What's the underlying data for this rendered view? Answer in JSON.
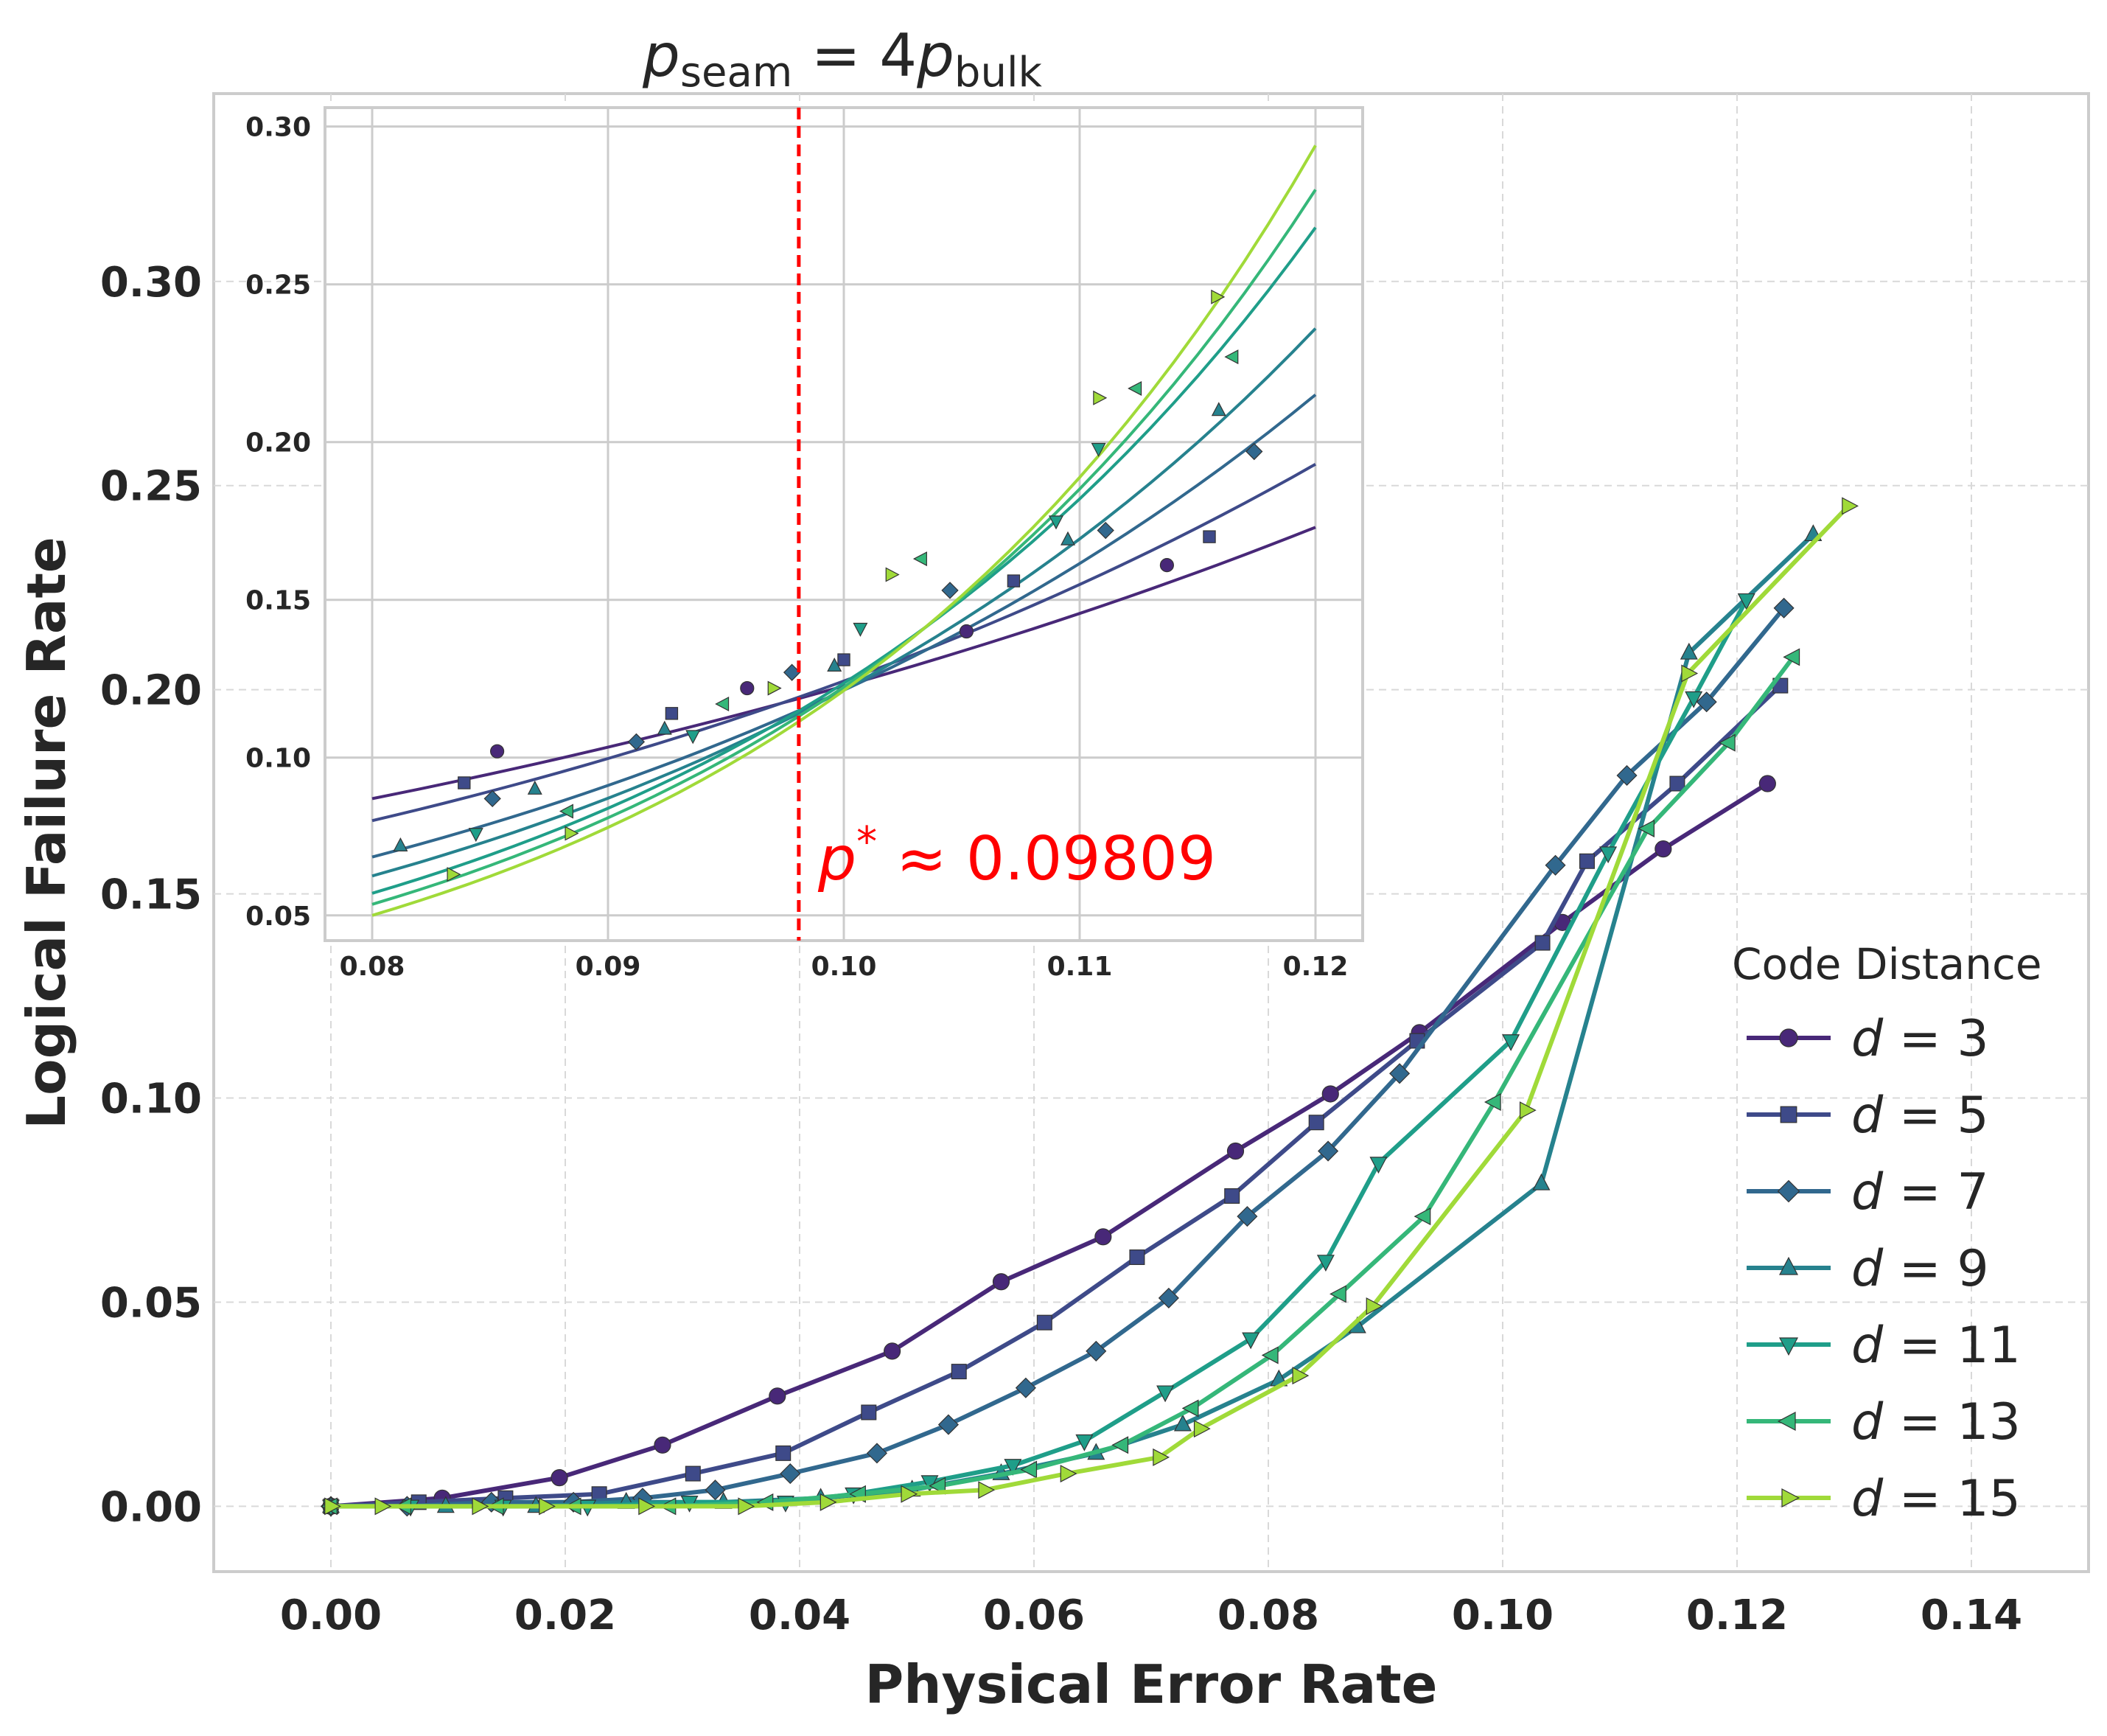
{
  "chart_data": [
    {
      "type": "line",
      "title": "",
      "xlabel": "Physical Error Rate",
      "ylabel": "Logical Failure Rate",
      "xlim": [
        -0.01,
        0.15
      ],
      "ylim": [
        -0.016,
        0.346
      ],
      "xticks": [
        "0.00",
        "0.02",
        "0.04",
        "0.06",
        "0.08",
        "0.10",
        "0.12",
        "0.14"
      ],
      "yticks": [
        "0.00",
        "0.05",
        "0.10",
        "0.15",
        "0.20",
        "0.25",
        "0.30"
      ],
      "grid": true,
      "legend_title": "Code Distance",
      "legend_placement": "lower-right",
      "series": [
        {
          "name": "d = 3",
          "d": "3",
          "color": "#482878",
          "marker": "circle",
          "x": [
            0,
            0.0095,
            0.0195,
            0.0283,
            0.0381,
            0.0479,
            0.0572,
            0.0659,
            0.0772,
            0.0853,
            0.0929,
            0.1051,
            0.1137,
            0.1226
          ],
          "y": [
            0,
            0.002,
            0.007,
            0.015,
            0.027,
            0.038,
            0.055,
            0.066,
            0.087,
            0.101,
            0.116,
            0.143,
            0.161,
            0.177
          ]
        },
        {
          "name": "d = 5",
          "d": "5",
          "color": "#3e4a89",
          "marker": "square",
          "x": [
            0,
            0.0075,
            0.0149,
            0.0229,
            0.0309,
            0.0386,
            0.0459,
            0.0536,
            0.0609,
            0.0688,
            0.0769,
            0.0841,
            0.0927,
            0.1034,
            0.1072,
            0.1149,
            0.1237
          ],
          "y": [
            0,
            0.001,
            0.002,
            0.003,
            0.008,
            0.013,
            0.023,
            0.033,
            0.045,
            0.061,
            0.076,
            0.094,
            0.114,
            0.138,
            0.158,
            0.177,
            0.201
          ]
        },
        {
          "name": "d = 7",
          "d": "7",
          "color": "#31688e",
          "marker": "diamond",
          "x": [
            0,
            0.0065,
            0.0137,
            0.0207,
            0.0266,
            0.0328,
            0.0392,
            0.0466,
            0.0527,
            0.0593,
            0.0653,
            0.0715,
            0.0782,
            0.0851,
            0.0912,
            0.1045,
            0.1106,
            0.1174,
            0.124
          ],
          "y": [
            0,
            0,
            0.001,
            0.001,
            0.002,
            0.004,
            0.008,
            0.013,
            0.02,
            0.029,
            0.038,
            0.051,
            0.071,
            0.087,
            0.106,
            0.157,
            0.179,
            0.197,
            0.22
          ]
        },
        {
          "name": "d = 9",
          "d": "9",
          "color": "#26828e",
          "marker": "triangle-up",
          "x": [
            0,
            0.0098,
            0.0175,
            0.0252,
            0.0335,
            0.0418,
            0.0496,
            0.0572,
            0.0653,
            0.0727,
            0.0809,
            0.0876,
            0.1033,
            0.1159,
            0.1265
          ],
          "y": [
            0,
            0,
            0,
            0.001,
            0.001,
            0.002,
            0.004,
            0.008,
            0.013,
            0.02,
            0.031,
            0.044,
            0.079,
            0.209,
            0.238
          ]
        },
        {
          "name": "d = 11",
          "d": "11",
          "color": "#1f9e89",
          "marker": "triangle-down",
          "x": [
            0,
            0.0068,
            0.0147,
            0.0219,
            0.0306,
            0.0388,
            0.0446,
            0.0511,
            0.0582,
            0.0643,
            0.0712,
            0.0785,
            0.0849,
            0.0894,
            0.1007,
            0.109,
            0.1163,
            0.1208
          ],
          "y": [
            0,
            0,
            0,
            0,
            0.001,
            0.001,
            0.003,
            0.006,
            0.01,
            0.016,
            0.028,
            0.041,
            0.06,
            0.084,
            0.114,
            0.16,
            0.198,
            0.222
          ]
        },
        {
          "name": "d = 13",
          "d": "13",
          "color": "#35b779",
          "marker": "triangle-left",
          "x": [
            0,
            0.0063,
            0.0142,
            0.0208,
            0.0289,
            0.0372,
            0.0451,
            0.0519,
            0.0597,
            0.0675,
            0.0735,
            0.0803,
            0.0861,
            0.0933,
            0.0993,
            0.1124,
            0.1193,
            0.1248
          ],
          "y": [
            0,
            0,
            0,
            0,
            0,
            0.001,
            0.003,
            0.005,
            0.009,
            0.015,
            0.024,
            0.037,
            0.052,
            0.071,
            0.099,
            0.166,
            0.187,
            0.208
          ]
        },
        {
          "name": "d = 15",
          "d": "15",
          "color": "#a0da39",
          "marker": "triangle-right",
          "x": [
            0,
            0.0043,
            0.0126,
            0.0183,
            0.0268,
            0.0353,
            0.0423,
            0.0492,
            0.0558,
            0.0628,
            0.0707,
            0.0742,
            0.0826,
            0.0889,
            0.102,
            0.1158,
            0.1295
          ],
          "y": [
            0,
            0,
            0,
            0,
            0,
            0,
            0.001,
            0.003,
            0.004,
            0.008,
            0.012,
            0.019,
            0.032,
            0.049,
            0.097,
            0.204,
            0.245
          ]
        }
      ]
    },
    {
      "type": "line",
      "title": "p_seam = 4p_bulk",
      "title_var": "p",
      "title_sub_left": "seam",
      "title_mid": " = 4",
      "title_sub_right": "bulk",
      "xlim": [
        0.078,
        0.122
      ],
      "ylim": [
        0.042,
        0.306
      ],
      "xticks": [
        "0.08",
        "0.09",
        "0.10",
        "0.11",
        "0.12"
      ],
      "yticks": [
        "0.05",
        "0.10",
        "0.15",
        "0.20",
        "0.25",
        "0.30"
      ],
      "grid": true,
      "threshold": 0.09809,
      "threshold_label_var": "p",
      "threshold_label_sup": "*",
      "threshold_label_text": " ≈ 0.09809",
      "threshold_color": "#ff0000",
      "fit_range": [
        0.08,
        0.12
      ],
      "fit_lines": [
        {
          "d": "3",
          "y_start": 0.087,
          "y_end": 0.173
        },
        {
          "d": "5",
          "y_start": 0.08,
          "y_end": 0.193
        },
        {
          "d": "7",
          "y_start": 0.0685,
          "y_end": 0.215
        },
        {
          "d": "9",
          "y_start": 0.0625,
          "y_end": 0.236
        },
        {
          "d": "11",
          "y_start": 0.057,
          "y_end": 0.268
        },
        {
          "d": "13",
          "y_start": 0.0535,
          "y_end": 0.28
        },
        {
          "d": "15",
          "y_start": 0.05,
          "y_end": 0.294
        }
      ],
      "points": [
        {
          "d": "3",
          "x": [
            0.0853,
            0.0959,
            0.1052,
            0.1137
          ],
          "y": [
            0.102,
            0.122,
            0.14,
            0.161
          ]
        },
        {
          "d": "5",
          "x": [
            0.0839,
            0.0927,
            0.1,
            0.1072,
            0.1155
          ],
          "y": [
            0.092,
            0.114,
            0.131,
            0.156,
            0.17
          ]
        },
        {
          "d": "7",
          "x": [
            0.0851,
            0.0912,
            0.0978,
            0.1045,
            0.1111,
            0.1174
          ],
          "y": [
            0.087,
            0.105,
            0.127,
            0.153,
            0.172,
            0.197
          ]
        },
        {
          "d": "9",
          "x": [
            0.0812,
            0.0869,
            0.0924,
            0.0996,
            0.1095,
            0.1159
          ],
          "y": [
            0.072,
            0.09,
            0.109,
            0.129,
            0.169,
            0.21
          ]
        },
        {
          "d": "11",
          "x": [
            0.0844,
            0.0936,
            0.1007,
            0.109,
            0.1108
          ],
          "y": [
            0.076,
            0.107,
            0.141,
            0.175,
            0.198
          ]
        },
        {
          "d": "13",
          "x": [
            0.0883,
            0.0949,
            0.1033,
            0.1124,
            0.1165
          ],
          "y": [
            0.083,
            0.117,
            0.163,
            0.217,
            0.227
          ]
        },
        {
          "d": "15",
          "x": [
            0.0834,
            0.0884,
            0.097,
            0.102,
            0.1108,
            0.1158
          ],
          "y": [
            0.063,
            0.076,
            0.122,
            0.158,
            0.214,
            0.246
          ]
        }
      ]
    }
  ]
}
